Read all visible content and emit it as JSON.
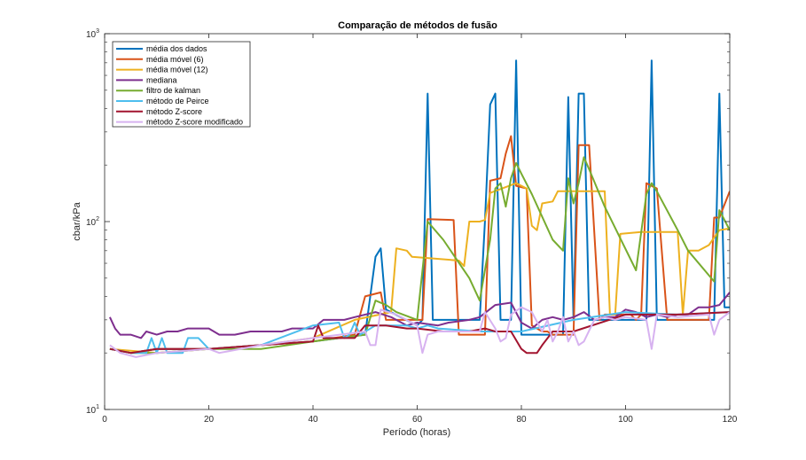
{
  "chart_data": {
    "type": "line",
    "title": "Comparação de métodos de fusão",
    "xlabel": "Período (horas)",
    "ylabel": "cbar/kPa",
    "xlim": [
      0,
      120
    ],
    "ylim": [
      10,
      1000
    ],
    "yscale": "log",
    "x_ticks": [
      0,
      20,
      40,
      60,
      80,
      100,
      120
    ],
    "y_ticks": [
      {
        "value": 10,
        "base": "10",
        "exp": "1"
      },
      {
        "value": 100,
        "base": "10",
        "exp": "2"
      },
      {
        "value": 1000,
        "base": "10",
        "exp": "3"
      }
    ],
    "grid": false,
    "legend_position": "top-left",
    "series": [
      {
        "name": "média dos dados",
        "color": "#0072BD",
        "points": [
          [
            1,
            21
          ],
          [
            5,
            20
          ],
          [
            10,
            21
          ],
          [
            20,
            21
          ],
          [
            30,
            22
          ],
          [
            40,
            23
          ],
          [
            50,
            25
          ],
          [
            52,
            65
          ],
          [
            53,
            72
          ],
          [
            54,
            34
          ],
          [
            60,
            28
          ],
          [
            61,
            30
          ],
          [
            62,
            480
          ],
          [
            63,
            30
          ],
          [
            72,
            30
          ],
          [
            73,
            100
          ],
          [
            74,
            420
          ],
          [
            75,
            480
          ],
          [
            76,
            30
          ],
          [
            78,
            30
          ],
          [
            79,
            720
          ],
          [
            80,
            25
          ],
          [
            88,
            25
          ],
          [
            89,
            460
          ],
          [
            90,
            30
          ],
          [
            91,
            480
          ],
          [
            92,
            480
          ],
          [
            93,
            30
          ],
          [
            104,
            30
          ],
          [
            105,
            720
          ],
          [
            106,
            30
          ],
          [
            117,
            30
          ],
          [
            118,
            480
          ],
          [
            119,
            35
          ],
          [
            120,
            35
          ]
        ]
      },
      {
        "name": "média móvel (6)",
        "color": "#D95319",
        "points": [
          [
            1,
            21
          ],
          [
            5,
            20
          ],
          [
            10,
            21
          ],
          [
            20,
            21
          ],
          [
            30,
            22
          ],
          [
            40,
            23
          ],
          [
            48,
            25
          ],
          [
            50,
            40
          ],
          [
            53,
            42
          ],
          [
            54,
            30
          ],
          [
            61,
            30
          ],
          [
            62,
            103
          ],
          [
            67,
            102
          ],
          [
            68,
            25
          ],
          [
            73,
            25
          ],
          [
            74,
            165
          ],
          [
            76,
            170
          ],
          [
            77,
            230
          ],
          [
            78,
            285
          ],
          [
            79,
            155
          ],
          [
            81,
            150
          ],
          [
            82,
            28
          ],
          [
            84,
            26
          ],
          [
            85,
            26
          ],
          [
            86,
            25
          ],
          [
            90,
            25
          ],
          [
            91,
            255
          ],
          [
            93,
            255
          ],
          [
            95,
            30
          ],
          [
            96,
            32
          ],
          [
            101,
            32
          ],
          [
            102,
            30
          ],
          [
            103,
            32
          ],
          [
            104,
            160
          ],
          [
            106,
            150
          ],
          [
            108,
            30
          ],
          [
            116,
            30
          ],
          [
            117,
            105
          ],
          [
            118,
            105
          ],
          [
            120,
            145
          ]
        ]
      },
      {
        "name": "média móvel (12)",
        "color": "#EDB120",
        "points": [
          [
            1,
            21
          ],
          [
            10,
            20
          ],
          [
            20,
            21
          ],
          [
            30,
            22
          ],
          [
            40,
            24
          ],
          [
            48,
            30
          ],
          [
            55,
            33
          ],
          [
            56,
            72
          ],
          [
            58,
            70
          ],
          [
            59,
            65
          ],
          [
            68,
            62
          ],
          [
            69,
            58
          ],
          [
            70,
            100
          ],
          [
            72,
            100
          ],
          [
            73,
            102
          ],
          [
            74,
            142
          ],
          [
            79,
            160
          ],
          [
            81,
            150
          ],
          [
            82,
            95
          ],
          [
            83,
            90
          ],
          [
            84,
            125
          ],
          [
            86,
            128
          ],
          [
            87,
            145
          ],
          [
            96,
            145
          ],
          [
            97,
            32
          ],
          [
            98,
            32
          ],
          [
            99,
            86
          ],
          [
            103,
            88
          ],
          [
            110,
            88
          ],
          [
            111,
            32
          ],
          [
            112,
            70
          ],
          [
            114,
            70
          ],
          [
            116,
            75
          ],
          [
            118,
            90
          ],
          [
            120,
            92
          ]
        ]
      },
      {
        "name": "mediana",
        "color": "#7E2F8E",
        "points": [
          [
            1,
            31
          ],
          [
            2,
            27
          ],
          [
            3,
            25
          ],
          [
            5,
            25
          ],
          [
            7,
            24
          ],
          [
            8,
            26
          ],
          [
            10,
            25
          ],
          [
            12,
            26
          ],
          [
            14,
            26
          ],
          [
            16,
            27
          ],
          [
            20,
            27
          ],
          [
            22,
            25
          ],
          [
            25,
            25
          ],
          [
            28,
            26
          ],
          [
            30,
            26
          ],
          [
            34,
            26
          ],
          [
            36,
            27
          ],
          [
            40,
            27
          ],
          [
            42,
            30
          ],
          [
            46,
            30
          ],
          [
            48,
            31
          ],
          [
            52,
            33
          ],
          [
            55,
            31
          ],
          [
            58,
            28
          ],
          [
            60,
            29
          ],
          [
            64,
            28
          ],
          [
            66,
            29
          ],
          [
            70,
            30
          ],
          [
            72,
            31
          ],
          [
            75,
            36
          ],
          [
            78,
            37
          ],
          [
            80,
            29
          ],
          [
            82,
            27
          ],
          [
            84,
            30
          ],
          [
            86,
            31
          ],
          [
            88,
            30
          ],
          [
            90,
            31
          ],
          [
            92,
            33
          ],
          [
            94,
            30
          ],
          [
            96,
            31
          ],
          [
            98,
            31
          ],
          [
            100,
            34
          ],
          [
            102,
            33
          ],
          [
            104,
            31
          ],
          [
            106,
            32
          ],
          [
            108,
            31
          ],
          [
            110,
            32
          ],
          [
            112,
            32
          ],
          [
            114,
            35
          ],
          [
            116,
            35
          ],
          [
            118,
            36
          ],
          [
            120,
            42
          ]
        ]
      },
      {
        "name": "filtro de kalman",
        "color": "#77AC30",
        "points": [
          [
            1,
            21
          ],
          [
            5,
            20
          ],
          [
            10,
            20
          ],
          [
            20,
            21
          ],
          [
            30,
            21
          ],
          [
            40,
            23
          ],
          [
            50,
            25
          ],
          [
            52,
            38
          ],
          [
            54,
            36
          ],
          [
            56,
            33
          ],
          [
            60,
            30
          ],
          [
            62,
            100
          ],
          [
            65,
            80
          ],
          [
            70,
            50
          ],
          [
            72,
            38
          ],
          [
            74,
            80
          ],
          [
            75,
            150
          ],
          [
            76,
            160
          ],
          [
            77,
            120
          ],
          [
            78,
            170
          ],
          [
            79,
            205
          ],
          [
            80,
            180
          ],
          [
            82,
            140
          ],
          [
            86,
            80
          ],
          [
            88,
            70
          ],
          [
            89,
            170
          ],
          [
            90,
            125
          ],
          [
            91,
            160
          ],
          [
            92,
            220
          ],
          [
            93,
            190
          ],
          [
            96,
            120
          ],
          [
            102,
            55
          ],
          [
            104,
            140
          ],
          [
            105,
            160
          ],
          [
            106,
            145
          ],
          [
            110,
            90
          ],
          [
            112,
            70
          ],
          [
            117,
            48
          ],
          [
            118,
            115
          ],
          [
            120,
            90
          ]
        ]
      },
      {
        "name": "método de Peirce",
        "color": "#4DBEEE",
        "points": [
          [
            1,
            21
          ],
          [
            5,
            20
          ],
          [
            8,
            20
          ],
          [
            9,
            24
          ],
          [
            10,
            20
          ],
          [
            11,
            24
          ],
          [
            12,
            20
          ],
          [
            15,
            20
          ],
          [
            16,
            24
          ],
          [
            18,
            24
          ],
          [
            20,
            21
          ],
          [
            30,
            22
          ],
          [
            40,
            28
          ],
          [
            45,
            29
          ],
          [
            46,
            24
          ],
          [
            47,
            25
          ],
          [
            48,
            29
          ],
          [
            49,
            25
          ],
          [
            52,
            28
          ],
          [
            54,
            28
          ],
          [
            56,
            28
          ],
          [
            58,
            28
          ],
          [
            60,
            27
          ],
          [
            62,
            28
          ],
          [
            64,
            27
          ],
          [
            72,
            26
          ],
          [
            80,
            26
          ],
          [
            90,
            30
          ],
          [
            100,
            33
          ],
          [
            110,
            32
          ],
          [
            120,
            33
          ]
        ]
      },
      {
        "name": "método Z-score",
        "color": "#A2142F",
        "points": [
          [
            1,
            21
          ],
          [
            5,
            20
          ],
          [
            10,
            21
          ],
          [
            20,
            21
          ],
          [
            30,
            22
          ],
          [
            40,
            23
          ],
          [
            41,
            28
          ],
          [
            42,
            24
          ],
          [
            48,
            24
          ],
          [
            50,
            28
          ],
          [
            54,
            28
          ],
          [
            58,
            27
          ],
          [
            60,
            27
          ],
          [
            65,
            26
          ],
          [
            70,
            26
          ],
          [
            73,
            27
          ],
          [
            75,
            26
          ],
          [
            78,
            26
          ],
          [
            80,
            21
          ],
          [
            81,
            20
          ],
          [
            83,
            20
          ],
          [
            84,
            22
          ],
          [
            86,
            26
          ],
          [
            90,
            26
          ],
          [
            100,
            32
          ],
          [
            110,
            32
          ],
          [
            120,
            33
          ]
        ]
      },
      {
        "name": "método Z-score modificado",
        "color": "#D7B2F0",
        "points": [
          [
            1,
            22
          ],
          [
            3,
            20
          ],
          [
            6,
            19
          ],
          [
            10,
            20
          ],
          [
            20,
            21
          ],
          [
            22,
            20
          ],
          [
            30,
            22
          ],
          [
            40,
            24
          ],
          [
            50,
            26
          ],
          [
            51,
            22
          ],
          [
            52,
            22
          ],
          [
            53,
            34
          ],
          [
            56,
            32
          ],
          [
            60,
            28
          ],
          [
            61,
            20
          ],
          [
            62,
            25
          ],
          [
            64,
            26
          ],
          [
            72,
            26
          ],
          [
            73,
            33
          ],
          [
            75,
            27
          ],
          [
            76,
            23
          ],
          [
            77,
            24
          ],
          [
            78,
            32
          ],
          [
            80,
            35
          ],
          [
            82,
            33
          ],
          [
            84,
            26
          ],
          [
            85,
            30
          ],
          [
            86,
            23
          ],
          [
            87,
            26
          ],
          [
            88,
            31
          ],
          [
            89,
            23
          ],
          [
            90,
            26
          ],
          [
            91,
            22
          ],
          [
            92,
            23
          ],
          [
            94,
            30
          ],
          [
            96,
            31
          ],
          [
            98,
            30
          ],
          [
            100,
            31
          ],
          [
            104,
            30
          ],
          [
            105,
            21
          ],
          [
            106,
            32
          ],
          [
            110,
            31
          ],
          [
            116,
            32
          ],
          [
            117,
            25
          ],
          [
            118,
            30
          ],
          [
            120,
            33
          ]
        ]
      }
    ]
  }
}
